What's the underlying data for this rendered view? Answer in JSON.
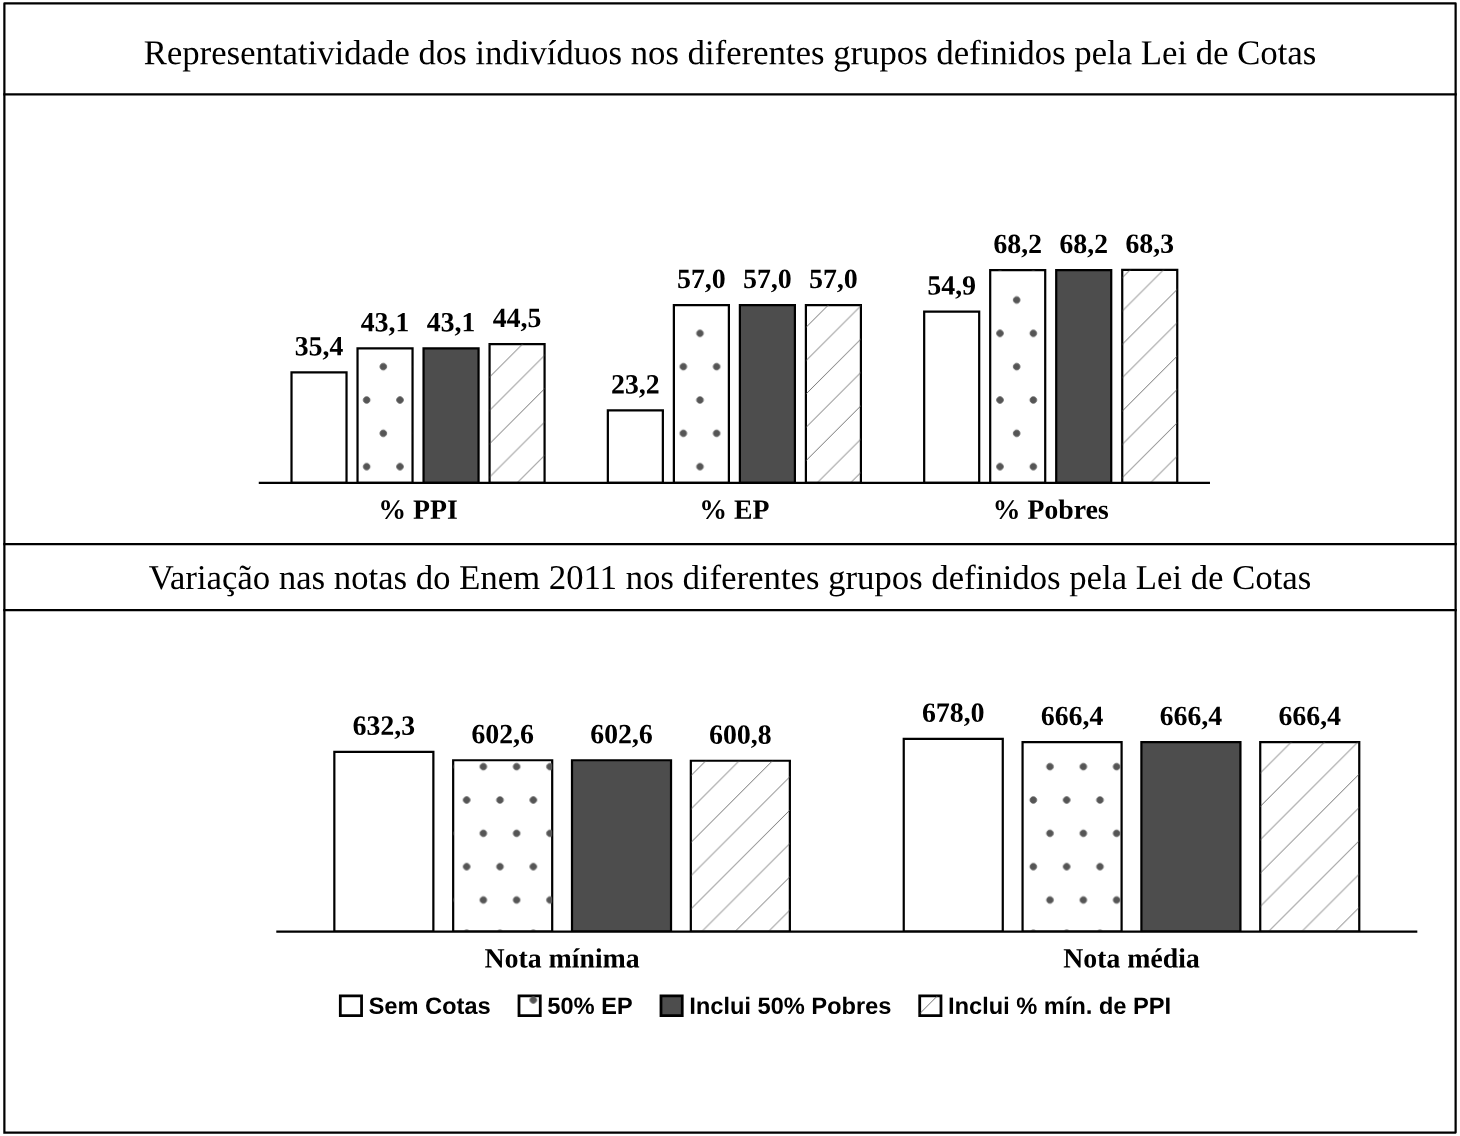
{
  "chart_data": [
    {
      "type": "bar",
      "title": "Representatividade dos indivíduos nos diferentes grupos definidos pela Lei de Cotas",
      "categories": [
        "% PPI",
        "% EP",
        "% Pobres"
      ],
      "legend": false,
      "grid": false,
      "series": [
        {
          "color": "#ffffff",
          "values": [
            35.4,
            23.2,
            54.9
          ],
          "value_labels": [
            "35,4",
            "23,2",
            "54,9"
          ]
        },
        {
          "color": "#ffffff",
          "values": [
            43.1,
            57.0,
            68.2
          ],
          "value_labels": [
            "43,1",
            "57,0",
            "68,2"
          ]
        },
        {
          "color": "#4d4d4d",
          "values": [
            43.1,
            57.0,
            68.2
          ],
          "value_labels": [
            "43,1",
            "57,0",
            "68,2"
          ]
        },
        {
          "color": "#ffffff",
          "values": [
            44.5,
            57.0,
            68.3
          ],
          "value_labels": [
            "44,5",
            "57,0",
            "68,3"
          ]
        }
      ]
    },
    {
      "type": "bar",
      "title": "Variação nas notas do Enem 2011 nos diferentes grupos definidos pela Lei de Cotas",
      "categories": [
        "Nota mínima",
        "Nota média"
      ],
      "legend": "bottom",
      "grid": false,
      "series": [
        {
          "name": "Sem Cotas",
          "color": "#ffffff",
          "values": [
            632.3,
            678.0
          ],
          "value_labels": [
            "632,3",
            "678,0"
          ]
        },
        {
          "name": "50% EP",
          "color": "#ffffff",
          "values": [
            602.6,
            666.4
          ],
          "value_labels": [
            "602,6",
            "666,4"
          ]
        },
        {
          "name": "Inclui 50% Pobres",
          "color": "#4d4d4d",
          "values": [
            602.6,
            666.4
          ],
          "value_labels": [
            "602,6",
            "666,4"
          ]
        },
        {
          "name": "Inclui % mín. de PPI",
          "color": "#ffffff",
          "values": [
            600.8,
            666.4
          ],
          "value_labels": [
            "600,8",
            "666,4"
          ]
        }
      ]
    }
  ]
}
